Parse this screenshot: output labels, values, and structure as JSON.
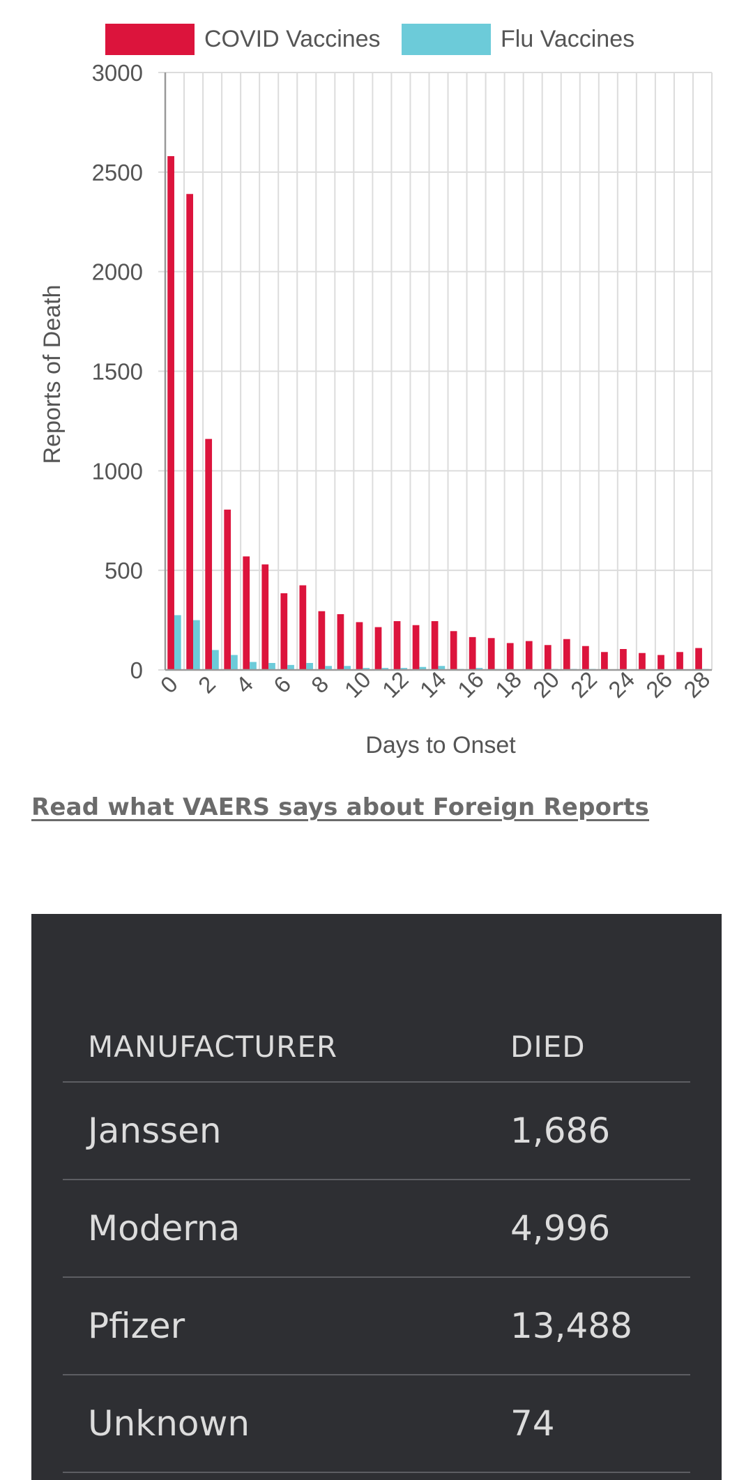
{
  "chart_data": {
    "type": "bar",
    "xlabel": "Days to Onset",
    "ylabel": "Reports of Death",
    "ylim": [
      0,
      3000
    ],
    "y_ticks": [
      "0",
      "500",
      "1000",
      "1500",
      "2000",
      "2500",
      "3000"
    ],
    "x_tick_labels": [
      "0",
      "2",
      "4",
      "6",
      "8",
      "10",
      "12",
      "14",
      "16",
      "18",
      "20",
      "22",
      "24",
      "26",
      "28"
    ],
    "categories": [
      "0",
      "1",
      "2",
      "3",
      "4",
      "5",
      "6",
      "7",
      "8",
      "9",
      "10",
      "11",
      "12",
      "13",
      "14",
      "15",
      "16",
      "17",
      "18",
      "19",
      "20",
      "21",
      "22",
      "23",
      "24",
      "25",
      "26",
      "27",
      "28"
    ],
    "grid": true,
    "legend_position": "top",
    "series": [
      {
        "name": "COVID Vaccines",
        "color": "#dc143c",
        "values": [
          2580,
          2390,
          1160,
          805,
          570,
          530,
          385,
          425,
          295,
          280,
          240,
          215,
          245,
          225,
          245,
          195,
          165,
          160,
          135,
          145,
          125,
          155,
          120,
          90,
          105,
          85,
          75,
          90,
          110
        ]
      },
      {
        "name": "Flu Vaccines",
        "color": "#6ccbd9",
        "values": [
          275,
          250,
          100,
          75,
          40,
          35,
          25,
          35,
          20,
          20,
          10,
          10,
          10,
          15,
          20,
          5,
          10,
          5,
          3,
          3,
          5,
          5,
          5,
          3,
          3,
          3,
          3,
          3,
          5
        ]
      }
    ]
  },
  "link_text": "Read what VAERS says about Foreign Reports",
  "table": {
    "headers": [
      "MANUFACTURER",
      "DIED"
    ],
    "rows": [
      {
        "manufacturer": "Janssen",
        "died": "1,686"
      },
      {
        "manufacturer": "Moderna",
        "died": "4,996"
      },
      {
        "manufacturer": "Pfizer",
        "died": "13,488"
      },
      {
        "manufacturer": "Unknown",
        "died": "74"
      }
    ]
  }
}
